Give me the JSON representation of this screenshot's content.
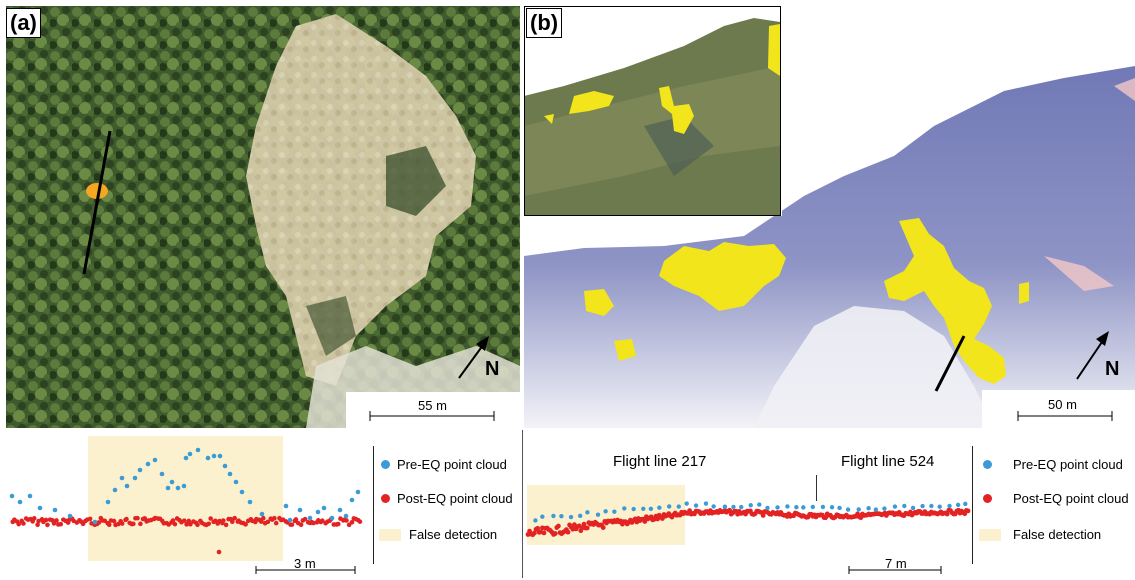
{
  "panels": {
    "a": {
      "label": "(a)",
      "north": "N",
      "scale": "55 m"
    },
    "b": {
      "label": "(b)",
      "north": "N",
      "scale": "50 m"
    }
  },
  "profile_a": {
    "scale": "3 m",
    "legend": {
      "pre": "Pre-EQ point cloud",
      "post": "Post-EQ point cloud",
      "false": "False detection"
    }
  },
  "profile_b": {
    "scale": "7 m",
    "flight_left": "Flight line 217",
    "flight_right": "Flight line 524",
    "legend": {
      "pre": "Pre-EQ point cloud",
      "post": "Post-EQ point cloud",
      "false": "False detection"
    }
  },
  "colors": {
    "pre_eq": "#3b9bd6",
    "post_eq": "#e32323",
    "false_detection": "#fbf1cf",
    "detection": "#f2e51b",
    "detection_orange": "#f5a623",
    "forest_dark": "#2f4524",
    "forest_mid": "#4e6636",
    "clearing": "#d9cfae",
    "dod_blue": "#7f86bd"
  }
}
